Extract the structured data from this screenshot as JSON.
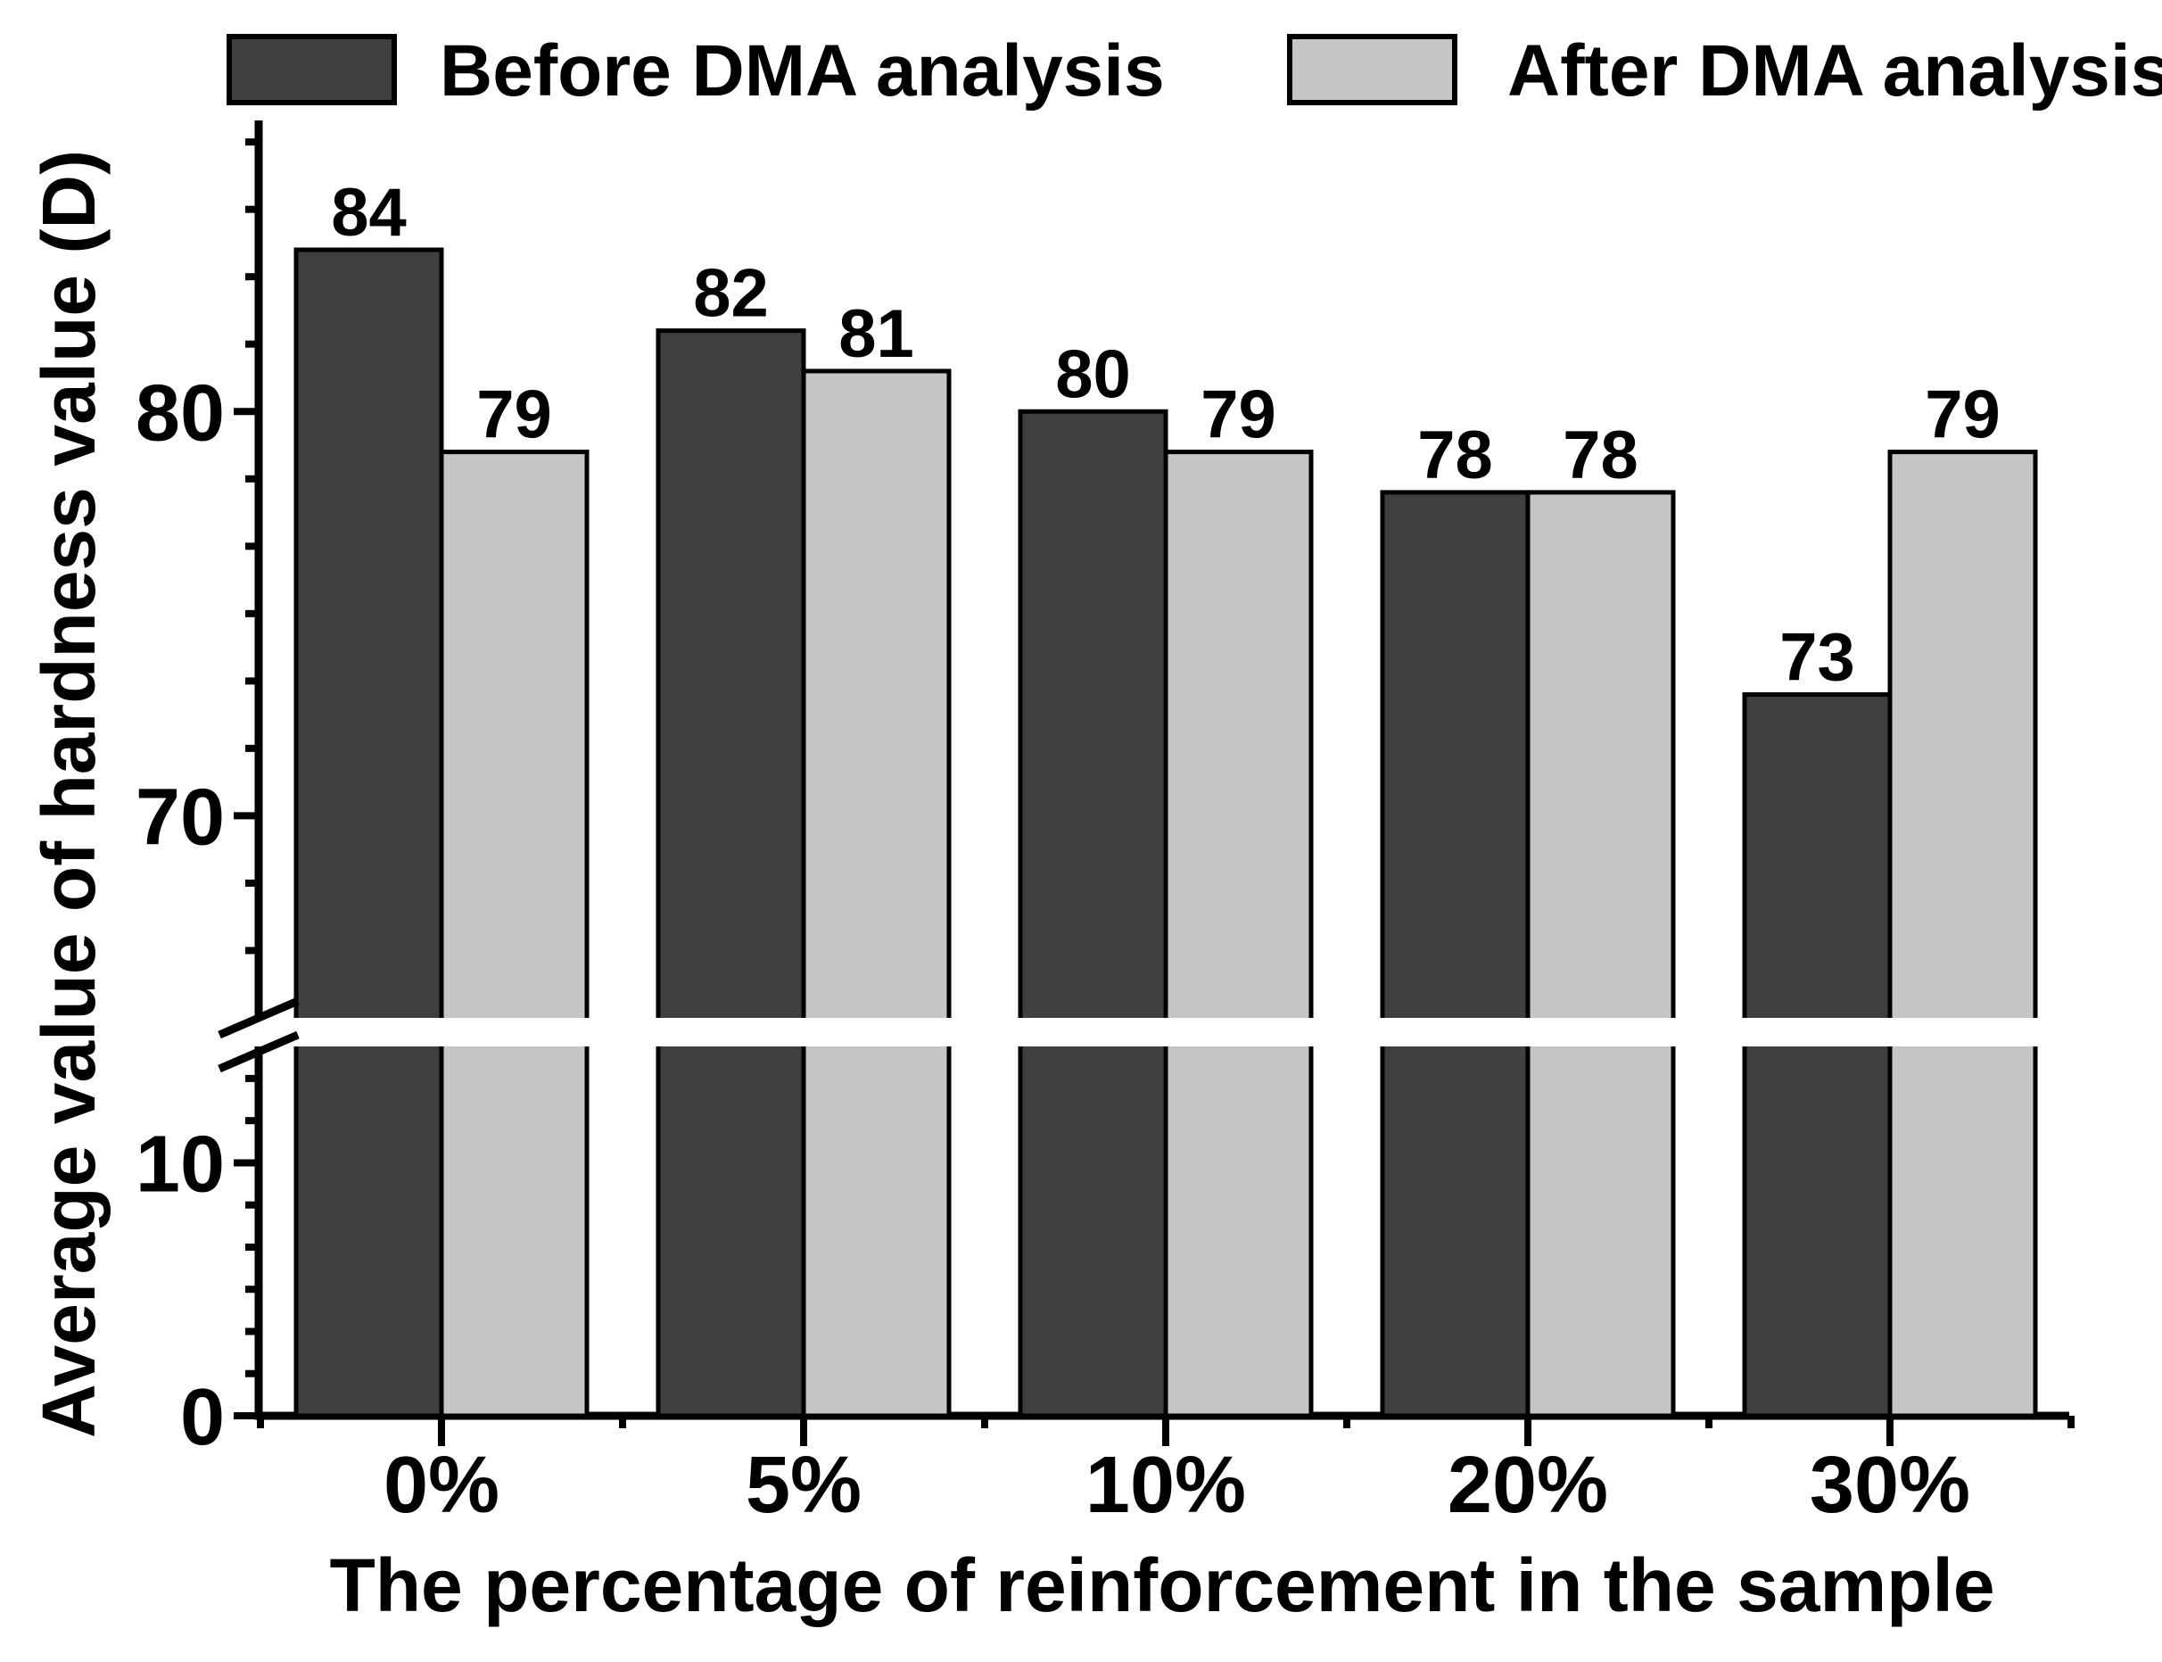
{
  "legend": {
    "items": [
      {
        "label": "Before DMA analysis",
        "color": "#3f3f3f"
      },
      {
        "label": "After DMA analysis",
        "color": "#c5c5c5"
      }
    ]
  },
  "axes": {
    "y_title": "Average value of hardness value (D)",
    "x_title": "The percentage of reinforcement in the sample",
    "y_major_tick_labels": [
      "0",
      "10",
      "70",
      "80"
    ]
  },
  "chart_data": {
    "type": "bar",
    "title": "",
    "categories": [
      "0%",
      "5%",
      "10%",
      "20%",
      "30%"
    ],
    "series": [
      {
        "name": "Before DMA analysis",
        "color": "#3f3f3f",
        "values": [
          84,
          82,
          80,
          78,
          73
        ],
        "value_labels": [
          "84",
          "82",
          "80",
          "78",
          "73"
        ]
      },
      {
        "name": "After DMA analysis",
        "color": "#c5c5c5",
        "values": [
          79,
          81,
          79,
          78,
          79
        ],
        "value_labels": [
          "79",
          "81",
          "79",
          "78",
          "79"
        ]
      }
    ],
    "xlabel": "The percentage of reinforcement in the sample",
    "ylabel": "Average value of hardness value (D)",
    "y_axis": {
      "broken": true,
      "break_between": [
        14.6,
        65
      ],
      "visible_max": 87.2,
      "major_ticks": [
        {
          "value": 0,
          "label": "0"
        },
        {
          "value": 10,
          "label": "10"
        },
        {
          "value": 70,
          "label": "70"
        },
        {
          "value": 80,
          "label": "80"
        }
      ],
      "minor_tick_interval": 1.6667
    },
    "legend_position": "top",
    "grid": false
  }
}
